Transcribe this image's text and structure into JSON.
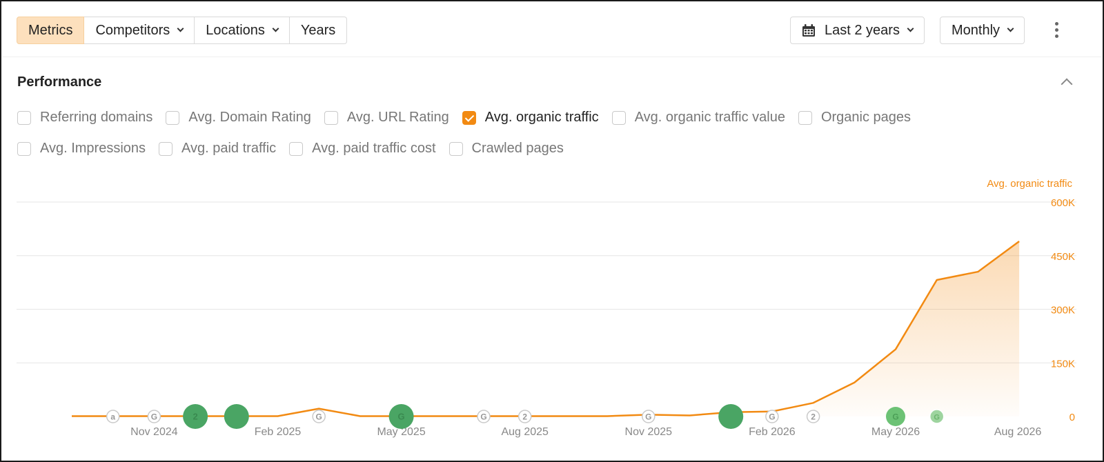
{
  "toolbar": {
    "tabs": [
      {
        "label": "Metrics",
        "active": true,
        "dropdown": false
      },
      {
        "label": "Competitors",
        "active": false,
        "dropdown": true
      },
      {
        "label": "Locations",
        "active": false,
        "dropdown": true
      },
      {
        "label": "Years",
        "active": false,
        "dropdown": false
      }
    ],
    "date_range": {
      "label": "Last 2 years",
      "icon": "calendar-icon"
    },
    "interval": {
      "label": "Monthly"
    },
    "more_icon": "kebab-icon"
  },
  "performance": {
    "title": "Performance",
    "collapse_icon": "chevron-up-icon",
    "metrics_row1": [
      {
        "label": "Referring domains",
        "checked": false
      },
      {
        "label": "Avg. Domain Rating",
        "checked": false
      },
      {
        "label": "Avg. URL Rating",
        "checked": false
      },
      {
        "label": "Avg. organic traffic",
        "checked": true
      },
      {
        "label": "Avg. organic traffic value",
        "checked": false
      },
      {
        "label": "Organic pages",
        "checked": false
      }
    ],
    "metrics_row2": [
      {
        "label": "Avg. Impressions",
        "checked": false
      },
      {
        "label": "Avg. paid traffic",
        "checked": false
      },
      {
        "label": "Avg. paid traffic cost",
        "checked": false
      },
      {
        "label": "Crawled pages",
        "checked": false
      }
    ]
  },
  "chart_data": {
    "type": "area",
    "ylabel": "Avg. organic traffic",
    "ylim": [
      0,
      600000
    ],
    "yticks": [
      0,
      150000,
      300000,
      450000,
      600000
    ],
    "ytick_labels": [
      "0",
      "150K",
      "300K",
      "450K",
      "600K"
    ],
    "x": [
      "2024-09",
      "2024-10",
      "2024-11",
      "2024-12",
      "2025-01",
      "2025-02",
      "2025-03",
      "2025-04",
      "2025-05",
      "2025-06",
      "2025-07",
      "2025-08",
      "2025-09",
      "2025-10",
      "2025-11",
      "2025-12",
      "2026-01",
      "2026-02",
      "2026-03",
      "2026-04",
      "2026-05",
      "2026-06",
      "2026-07",
      "2026-08"
    ],
    "xtick_labels": [
      "Nov 2024",
      "Feb 2025",
      "May 2025",
      "Aug 2025",
      "Nov 2025",
      "Feb 2026",
      "May 2026",
      "Aug 2026"
    ],
    "series": [
      {
        "name": "Avg. organic traffic",
        "color": "#f28a12",
        "values": [
          1000,
          1000,
          1000,
          1000,
          1000,
          1000,
          22000,
          1000,
          1000,
          1000,
          1000,
          1000,
          1000,
          1000,
          5000,
          3000,
          12000,
          14000,
          38000,
          95000,
          188000,
          382000,
          405000,
          490000
        ]
      }
    ],
    "annotations": [
      {
        "x": "2024-10",
        "icon": "a",
        "style": "outline"
      },
      {
        "x": "2024-11",
        "icon": "G",
        "style": "outline"
      },
      {
        "x": "2024-12",
        "icon": "2",
        "style": "large-green"
      },
      {
        "x": "2025-01",
        "icon": "",
        "style": "large-green"
      },
      {
        "x": "2025-03",
        "icon": "G",
        "style": "outline"
      },
      {
        "x": "2025-05",
        "icon": "G",
        "style": "large-green"
      },
      {
        "x": "2025-07",
        "icon": "G",
        "style": "outline"
      },
      {
        "x": "2025-08",
        "icon": "2",
        "style": "outline"
      },
      {
        "x": "2025-11",
        "icon": "G",
        "style": "outline"
      },
      {
        "x": "2026-01",
        "icon": "",
        "style": "large-green"
      },
      {
        "x": "2026-02",
        "icon": "G",
        "style": "outline"
      },
      {
        "x": "2026-03",
        "icon": "2",
        "style": "outline"
      },
      {
        "x": "2026-05",
        "icon": "G",
        "style": "medium-green"
      },
      {
        "x": "2026-06",
        "icon": "G",
        "style": "small-green"
      }
    ],
    "grid": true
  }
}
